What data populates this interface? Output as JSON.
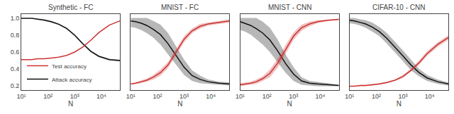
{
  "chart_data": [
    {
      "type": "line",
      "title": "Synthetic - FC",
      "xlabel": "N",
      "x": [
        10,
        15,
        25,
        40,
        70,
        130,
        250,
        500,
        1000,
        2000,
        4000,
        8000,
        20000,
        50000
      ],
      "series": [
        {
          "name": "Attack accuracy",
          "color": "#111111",
          "values": [
            1.0,
            1.0,
            1.0,
            0.99,
            0.98,
            0.96,
            0.93,
            0.88,
            0.8,
            0.7,
            0.61,
            0.55,
            0.51,
            0.5
          ],
          "lo": [
            1.0,
            1.0,
            1.0,
            0.99,
            0.97,
            0.95,
            0.92,
            0.87,
            0.79,
            0.69,
            0.6,
            0.54,
            0.5,
            0.49
          ],
          "hi": [
            1.0,
            1.0,
            1.0,
            1.0,
            0.99,
            0.97,
            0.94,
            0.89,
            0.81,
            0.71,
            0.62,
            0.56,
            0.52,
            0.51
          ]
        },
        {
          "name": "Test accuracy",
          "color": "#cc3333",
          "values": [
            0.51,
            0.51,
            0.51,
            0.52,
            0.52,
            0.53,
            0.54,
            0.56,
            0.6,
            0.66,
            0.74,
            0.83,
            0.92,
            0.97
          ],
          "lo": [
            0.51,
            0.51,
            0.51,
            0.52,
            0.52,
            0.53,
            0.54,
            0.56,
            0.6,
            0.66,
            0.74,
            0.83,
            0.92,
            0.97
          ],
          "hi": [
            0.51,
            0.51,
            0.51,
            0.52,
            0.52,
            0.53,
            0.54,
            0.56,
            0.6,
            0.66,
            0.74,
            0.83,
            0.92,
            0.97
          ]
        }
      ],
      "log": "x",
      "xlim": [
        10,
        50000
      ],
      "xticks": [
        {
          "value": 10,
          "label": "10¹"
        },
        {
          "value": 100,
          "label": "10²"
        },
        {
          "value": 1000,
          "label": "10³"
        },
        {
          "value": 10000,
          "label": "10⁴"
        }
      ],
      "ylim": [
        0.15,
        1.05
      ],
      "yticks": [
        0.2,
        0.4,
        0.6,
        0.8,
        {
          "value": 1.0,
          "label": "1.0"
        }
      ],
      "grid": true,
      "legend": "lower left"
    },
    {
      "type": "line",
      "title": "MNIST - FC",
      "xlabel": "N",
      "x": [
        10,
        15,
        25,
        40,
        70,
        130,
        250,
        500,
        1000,
        2000,
        4000,
        8000,
        20000,
        50000
      ],
      "series": [
        {
          "color": "#111111",
          "values": [
            0.96,
            0.95,
            0.93,
            0.9,
            0.85,
            0.78,
            0.66,
            0.5,
            0.35,
            0.24,
            0.19,
            0.16,
            0.14,
            0.13
          ],
          "lo": [
            0.88,
            0.87,
            0.84,
            0.8,
            0.74,
            0.65,
            0.52,
            0.38,
            0.25,
            0.17,
            0.14,
            0.13,
            0.12,
            0.11
          ],
          "hi": [
            1.0,
            1.0,
            1.0,
            1.0,
            0.96,
            0.91,
            0.8,
            0.62,
            0.45,
            0.31,
            0.24,
            0.19,
            0.16,
            0.15
          ]
        },
        {
          "color": "#cc3333",
          "values": [
            0.13,
            0.14,
            0.16,
            0.18,
            0.22,
            0.28,
            0.38,
            0.55,
            0.72,
            0.83,
            0.89,
            0.92,
            0.94,
            0.96
          ],
          "lo": [
            0.12,
            0.13,
            0.14,
            0.16,
            0.19,
            0.24,
            0.34,
            0.51,
            0.68,
            0.8,
            0.86,
            0.9,
            0.92,
            0.94
          ],
          "hi": [
            0.14,
            0.15,
            0.18,
            0.2,
            0.25,
            0.32,
            0.42,
            0.59,
            0.76,
            0.86,
            0.92,
            0.94,
            0.96,
            0.98
          ]
        }
      ],
      "log": "x",
      "xlim": [
        10,
        50000
      ],
      "xticks": [
        {
          "value": 10,
          "label": "10¹"
        },
        {
          "value": 100,
          "label": "10²"
        },
        {
          "value": 1000,
          "label": "10³"
        },
        {
          "value": 10000,
          "label": "10⁴"
        }
      ],
      "ylim": [
        0.05,
        1.05
      ],
      "yticks": [],
      "tick_labels": "x",
      "grid": true
    },
    {
      "type": "line",
      "title": "MNIST - CNN",
      "xlabel": "N",
      "x": [
        10,
        15,
        25,
        40,
        70,
        130,
        250,
        500,
        1000,
        2000,
        4000,
        8000,
        20000,
        50000
      ],
      "series": [
        {
          "color": "#111111",
          "values": [
            0.95,
            0.93,
            0.9,
            0.86,
            0.8,
            0.71,
            0.57,
            0.4,
            0.26,
            0.17,
            0.14,
            0.13,
            0.12,
            0.11
          ],
          "lo": [
            0.84,
            0.82,
            0.78,
            0.72,
            0.65,
            0.55,
            0.42,
            0.28,
            0.17,
            0.12,
            0.11,
            0.1,
            0.1,
            0.1
          ],
          "hi": [
            1.0,
            1.0,
            1.0,
            1.0,
            0.95,
            0.87,
            0.72,
            0.52,
            0.35,
            0.22,
            0.17,
            0.16,
            0.14,
            0.12
          ]
        },
        {
          "color": "#cc3333",
          "values": [
            0.12,
            0.13,
            0.14,
            0.16,
            0.2,
            0.27,
            0.4,
            0.58,
            0.76,
            0.87,
            0.92,
            0.95,
            0.97,
            0.98
          ],
          "lo": [
            0.1,
            0.11,
            0.12,
            0.13,
            0.17,
            0.22,
            0.34,
            0.52,
            0.71,
            0.83,
            0.89,
            0.93,
            0.96,
            0.97
          ],
          "hi": [
            0.14,
            0.15,
            0.16,
            0.19,
            0.23,
            0.32,
            0.46,
            0.64,
            0.81,
            0.91,
            0.95,
            0.97,
            0.98,
            0.99
          ]
        }
      ],
      "log": "x",
      "xlim": [
        10,
        50000
      ],
      "xticks": [
        {
          "value": 10,
          "label": "10¹"
        },
        {
          "value": 100,
          "label": "10²"
        },
        {
          "value": 1000,
          "label": "10³"
        },
        {
          "value": 10000,
          "label": "10⁴"
        }
      ],
      "ylim": [
        0.05,
        1.05
      ],
      "yticks": [],
      "tick_labels": "x",
      "grid": true
    },
    {
      "type": "line",
      "title": "CIFAR-10 - CNN",
      "xlabel": "N",
      "x": [
        10,
        15,
        25,
        40,
        70,
        130,
        250,
        500,
        1000,
        2000,
        4000,
        8000,
        20000,
        50000
      ],
      "series": [
        {
          "color": "#111111",
          "values": [
            0.97,
            0.96,
            0.94,
            0.92,
            0.88,
            0.82,
            0.73,
            0.62,
            0.5,
            0.38,
            0.28,
            0.21,
            0.16,
            0.13
          ],
          "lo": [
            0.93,
            0.92,
            0.9,
            0.87,
            0.82,
            0.76,
            0.66,
            0.55,
            0.43,
            0.31,
            0.23,
            0.17,
            0.13,
            0.11
          ],
          "hi": [
            1.0,
            1.0,
            0.98,
            0.97,
            0.94,
            0.88,
            0.8,
            0.69,
            0.57,
            0.45,
            0.33,
            0.25,
            0.19,
            0.15
          ]
        },
        {
          "color": "#cc3333",
          "values": [
            0.1,
            0.1,
            0.11,
            0.11,
            0.12,
            0.13,
            0.15,
            0.18,
            0.23,
            0.31,
            0.41,
            0.53,
            0.65,
            0.74
          ],
          "lo": [
            0.1,
            0.1,
            0.1,
            0.1,
            0.11,
            0.12,
            0.14,
            0.17,
            0.21,
            0.29,
            0.38,
            0.5,
            0.62,
            0.71
          ],
          "hi": [
            0.1,
            0.1,
            0.12,
            0.12,
            0.13,
            0.14,
            0.16,
            0.19,
            0.25,
            0.33,
            0.44,
            0.56,
            0.68,
            0.77
          ]
        }
      ],
      "log": "x",
      "xlim": [
        10,
        50000
      ],
      "xticks": [
        {
          "value": 10,
          "label": "10¹"
        },
        {
          "value": 100,
          "label": "10²"
        },
        {
          "value": 1000,
          "label": "10³"
        },
        {
          "value": 10000,
          "label": "10⁴"
        }
      ],
      "ylim": [
        0.05,
        1.05
      ],
      "yticks": [],
      "tick_labels": "x",
      "grid": true
    }
  ]
}
